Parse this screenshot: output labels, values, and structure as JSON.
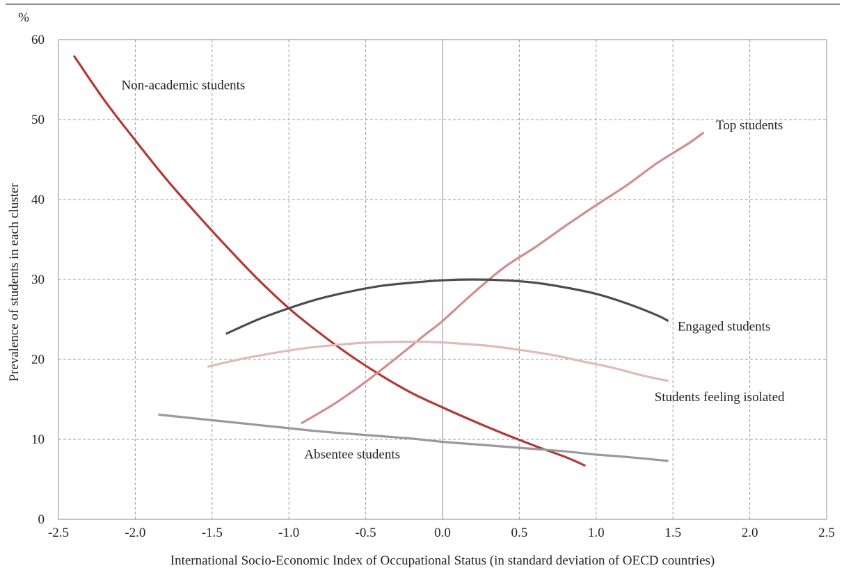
{
  "chart_data": {
    "type": "line",
    "ylabel": "Prevalence of students in each cluster",
    "yunit": "%",
    "xlabel": "International Socio-Economic Index of Occupational Status (in standard deviation of OECD countries)",
    "xlim": [
      -2.5,
      2.5
    ],
    "ylim": [
      0,
      60
    ],
    "xticks": [
      "-2.5",
      "-2.0",
      "-1.5",
      "-1.0",
      "-0.5",
      "0.0",
      "0.5",
      "1.0",
      "1.5",
      "2.0",
      "2.5"
    ],
    "yticks": [
      "0",
      "10",
      "20",
      "30",
      "40",
      "50",
      "60"
    ],
    "grid": true,
    "series": [
      {
        "name": "Non-academic students",
        "color": "#b03a36",
        "x": [
          -2.4,
          -2.2,
          -2.0,
          -1.8,
          -1.6,
          -1.4,
          -1.2,
          -1.0,
          -0.8,
          -0.6,
          -0.4,
          -0.2,
          0.0,
          0.2,
          0.4,
          0.6,
          0.8,
          0.93
        ],
        "y": [
          58.0,
          52.4,
          47.4,
          42.6,
          38.2,
          34.0,
          30.0,
          26.4,
          23.3,
          20.5,
          18.0,
          15.8,
          14.0,
          12.3,
          10.7,
          9.2,
          7.8,
          6.7
        ]
      },
      {
        "name": "Top students",
        "color": "#d08e8c",
        "x": [
          -0.92,
          -0.7,
          -0.5,
          -0.3,
          -0.1,
          0.0,
          0.2,
          0.4,
          0.6,
          0.8,
          1.0,
          1.2,
          1.4,
          1.6,
          1.7
        ],
        "y": [
          12.0,
          14.5,
          17.2,
          20.2,
          23.3,
          24.8,
          28.3,
          31.5,
          34.0,
          36.7,
          39.3,
          41.8,
          44.6,
          47.0,
          48.4
        ]
      },
      {
        "name": "Engaged students",
        "color": "#4d4d4d",
        "x": [
          -1.41,
          -1.2,
          -1.0,
          -0.8,
          -0.6,
          -0.4,
          -0.2,
          0.0,
          0.2,
          0.4,
          0.6,
          0.8,
          1.0,
          1.2,
          1.4,
          1.47
        ],
        "y": [
          23.2,
          25.0,
          26.4,
          27.6,
          28.5,
          29.2,
          29.6,
          29.9,
          30.0,
          29.9,
          29.6,
          29.0,
          28.2,
          27.0,
          25.5,
          24.8
        ]
      },
      {
        "name": "Students feeling isolated",
        "color": "#e4b8b7",
        "x": [
          -1.53,
          -1.3,
          -1.1,
          -0.9,
          -0.7,
          -0.5,
          -0.3,
          -0.1,
          0.1,
          0.3,
          0.5,
          0.7,
          0.9,
          1.1,
          1.3,
          1.47
        ],
        "y": [
          19.1,
          20.1,
          20.8,
          21.4,
          21.8,
          22.1,
          22.2,
          22.2,
          22.0,
          21.7,
          21.2,
          20.6,
          19.8,
          19.0,
          18.0,
          17.3
        ]
      },
      {
        "name": "Absentee students",
        "color": "#999999",
        "x": [
          -1.85,
          -1.6,
          -1.4,
          -1.2,
          -1.0,
          -0.8,
          -0.6,
          -0.4,
          -0.2,
          0.0,
          0.2,
          0.4,
          0.6,
          0.8,
          1.0,
          1.2,
          1.47
        ],
        "y": [
          13.1,
          12.6,
          12.2,
          11.8,
          11.4,
          11.0,
          10.7,
          10.4,
          10.1,
          9.7,
          9.4,
          9.1,
          8.8,
          8.5,
          8.1,
          7.8,
          7.3
        ]
      }
    ],
    "annotations": [
      {
        "text": "Non-academic students",
        "x": -2.09,
        "y": 53.8,
        "anchor": "start"
      },
      {
        "text": "Top students",
        "x": 1.78,
        "y": 48.8,
        "anchor": "start"
      },
      {
        "text": "Engaged students",
        "x": 1.53,
        "y": 23.6,
        "anchor": "start"
      },
      {
        "text": "Students feeling isolated",
        "x": 1.38,
        "y": 14.8,
        "anchor": "start"
      },
      {
        "text": "Absentee students",
        "x": -0.9,
        "y": 7.6,
        "anchor": "start"
      }
    ]
  }
}
